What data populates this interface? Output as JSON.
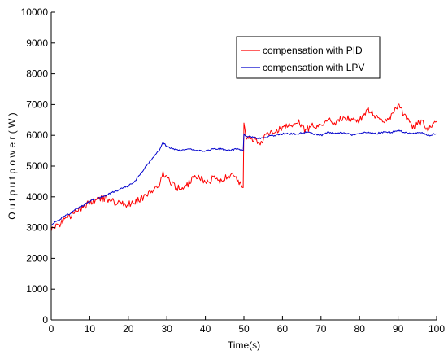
{
  "chart_data": {
    "type": "line",
    "xlabel": "Time(s)",
    "ylabel": "O u t p u t p o w e r ( W )",
    "xlim": [
      0,
      100
    ],
    "ylim": [
      0,
      10000
    ],
    "xticks": [
      0,
      10,
      20,
      30,
      40,
      50,
      60,
      70,
      80,
      90,
      100
    ],
    "yticks": [
      0,
      1000,
      2000,
      3000,
      4000,
      5000,
      6000,
      7000,
      8000,
      9000,
      10000
    ],
    "grid": false,
    "legend_position": "top-right",
    "series": [
      {
        "name": "compensation with  PID",
        "color": "#ff0000",
        "x": [
          0,
          2,
          4,
          6,
          8,
          10,
          12,
          14,
          16,
          18,
          20,
          22,
          24,
          26,
          28,
          29,
          30,
          32,
          34,
          36,
          38,
          40,
          42,
          44,
          46,
          48,
          49,
          49.8,
          50,
          50.5,
          52,
          54,
          56,
          58,
          60,
          62,
          64,
          66,
          68,
          70,
          72,
          74,
          76,
          78,
          80,
          82,
          84,
          86,
          88,
          90,
          92,
          94,
          96,
          98,
          100
        ],
        "y": [
          2950,
          3100,
          3300,
          3450,
          3650,
          3800,
          3900,
          3950,
          3850,
          3800,
          3750,
          3850,
          4000,
          4150,
          4350,
          4750,
          4600,
          4350,
          4200,
          4500,
          4700,
          4450,
          4600,
          4500,
          4700,
          4650,
          4400,
          4300,
          6400,
          6000,
          5900,
          5750,
          6000,
          6150,
          6250,
          6300,
          6450,
          6150,
          6350,
          6300,
          6500,
          6400,
          6600,
          6550,
          6500,
          6850,
          6650,
          6400,
          6600,
          6950,
          6600,
          6250,
          6450,
          6200,
          6450
        ]
      },
      {
        "name": "compensation with LPV",
        "color": "#0000cc",
        "x": [
          0,
          2,
          4,
          6,
          8,
          10,
          12,
          14,
          16,
          18,
          20,
          22,
          24,
          26,
          28,
          29,
          30,
          32,
          34,
          36,
          38,
          40,
          42,
          44,
          46,
          48,
          49,
          49.8,
          50,
          50.5,
          52,
          54,
          56,
          58,
          60,
          62,
          64,
          66,
          68,
          70,
          72,
          74,
          76,
          78,
          80,
          82,
          84,
          86,
          88,
          90,
          92,
          94,
          96,
          98,
          100
        ],
        "y": [
          3100,
          3250,
          3400,
          3550,
          3700,
          3850,
          3950,
          4050,
          4150,
          4250,
          4350,
          4550,
          4900,
          5200,
          5500,
          5750,
          5650,
          5550,
          5500,
          5550,
          5500,
          5500,
          5550,
          5550,
          5500,
          5550,
          5550,
          5500,
          6050,
          5950,
          5950,
          5900,
          5950,
          6000,
          6050,
          6050,
          6050,
          6100,
          6050,
          6000,
          6100,
          6050,
          6100,
          6000,
          6050,
          6100,
          6050,
          6100,
          6100,
          6150,
          6100,
          6050,
          6100,
          6000,
          6050
        ]
      }
    ]
  }
}
